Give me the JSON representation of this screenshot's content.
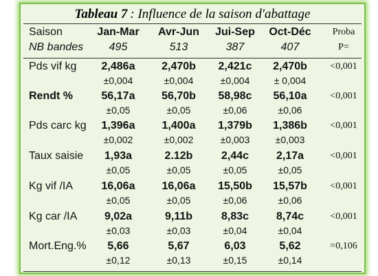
{
  "title": {
    "number": "Tableau 7",
    "text": ": Influence de la saison d'abattage"
  },
  "header": {
    "columns": [
      "Saison",
      "Jan-Mar",
      "Avr-Jun",
      "Jui-Sep",
      "Oct-Déc",
      "Proba"
    ],
    "subcolumns": [
      "NB bandes",
      "495",
      "513",
      "387",
      "407",
      "P="
    ]
  },
  "rows": [
    {
      "label": "Pds vif kg",
      "values": [
        "2,486a",
        "2,470b",
        "2,421c",
        "2,470b"
      ],
      "errors": [
        "±0,004",
        "±0,004",
        "±0,004",
        "± 0,004"
      ],
      "proba": "<0,001"
    },
    {
      "label": "Rendt %",
      "values": [
        "56,17a",
        "56,70b",
        "58,98c",
        "56,10a"
      ],
      "errors": [
        "±0,05",
        "±0,05",
        "±0,06",
        "±0,06"
      ],
      "proba": "<0,001"
    },
    {
      "label": "Pds carc kg",
      "values": [
        "1,396a",
        "1,400a",
        "1,379b",
        "1,386b"
      ],
      "errors": [
        "±0,002",
        "±0,002",
        "±0,003",
        "±0,003"
      ],
      "proba": "<0,001"
    },
    {
      "label": "Taux saisie",
      "values": [
        "1,93a",
        "2.12b",
        "2,44c",
        "2,17a"
      ],
      "errors": [
        "±0,05",
        "±0,05",
        "±0,05",
        "±0,05"
      ],
      "proba": "<0,001"
    },
    {
      "label": "Kg vif /IA",
      "values": [
        "16,06a",
        "16,06a",
        "15,50b",
        "15,57b"
      ],
      "errors": [
        "±0,05",
        "±0,05",
        "±0,06",
        "±0,06"
      ],
      "proba": "<0,001"
    },
    {
      "label": "Kg car /IA",
      "values": [
        "9,02a",
        "9,11b",
        "8,83c",
        "8,74c"
      ],
      "errors": [
        "±0,03",
        "±0,03",
        "±0,04",
        "±0,04"
      ],
      "proba": "<0,001"
    },
    {
      "label": "Mort.Eng.%",
      "values": [
        "5,66",
        "5,67",
        "6,03",
        "5,62"
      ],
      "errors": [
        "±0,12",
        "±0,13",
        "±0,15",
        "±0,14"
      ],
      "proba": "=0,106"
    }
  ]
}
